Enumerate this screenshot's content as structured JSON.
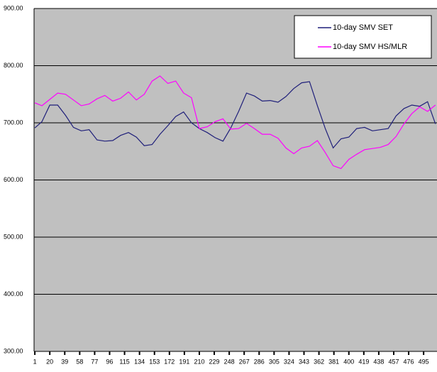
{
  "chart_data": {
    "type": "line",
    "x": [
      1,
      10,
      20,
      30,
      40,
      50,
      60,
      70,
      80,
      90,
      100,
      110,
      120,
      130,
      140,
      150,
      160,
      170,
      180,
      190,
      200,
      210,
      220,
      230,
      240,
      250,
      260,
      270,
      280,
      290,
      300,
      310,
      320,
      330,
      340,
      350,
      360,
      370,
      380,
      390,
      400,
      410,
      420,
      430,
      440,
      450,
      460,
      470,
      480,
      490,
      500,
      510
    ],
    "series": [
      {
        "name": "10-day SMV SET",
        "color": "#1f1f7a",
        "values": [
          691,
          702,
          731,
          731,
          713,
          692,
          686,
          688,
          670,
          668,
          669,
          678,
          683,
          675,
          660,
          662,
          680,
          695,
          711,
          719,
          700,
          690,
          683,
          674,
          668,
          691,
          720,
          752,
          747,
          738,
          739,
          736,
          746,
          760,
          770,
          772,
          730,
          690,
          656,
          672,
          675,
          690,
          692,
          686,
          688,
          690,
          712,
          725,
          731,
          729,
          737,
          698
        ]
      },
      {
        "name": "10-day SMV HS/MLR",
        "color": "#ff00ff",
        "values": [
          735,
          730,
          741,
          752,
          750,
          740,
          730,
          733,
          742,
          748,
          738,
          743,
          754,
          740,
          750,
          773,
          782,
          769,
          773,
          752,
          744,
          690,
          693,
          702,
          707,
          689,
          690,
          699,
          690,
          680,
          680,
          673,
          656,
          646,
          656,
          659,
          669,
          648,
          625,
          620,
          636,
          645,
          653,
          655,
          657,
          662,
          676,
          698,
          716,
          728,
          720,
          731
        ]
      }
    ],
    "xlim": [
      0,
      512
    ],
    "xticks": [
      1,
      20,
      39,
      58,
      77,
      96,
      115,
      134,
      153,
      172,
      191,
      210,
      229,
      248,
      267,
      286,
      305,
      324,
      343,
      362,
      381,
      400,
      419,
      438,
      457,
      476,
      495
    ],
    "ylim": [
      300,
      900
    ],
    "yticks": [
      {
        "value": 300,
        "label": "300.00"
      },
      {
        "value": 400,
        "label": "400.00"
      },
      {
        "value": 500,
        "label": "500.00"
      },
      {
        "value": 600,
        "label": "600.00"
      },
      {
        "value": 700,
        "label": "700.00"
      },
      {
        "value": 800,
        "label": "800.00"
      },
      {
        "value": 900,
        "label": "900.00"
      }
    ],
    "grid": true,
    "legend": "top-right"
  }
}
